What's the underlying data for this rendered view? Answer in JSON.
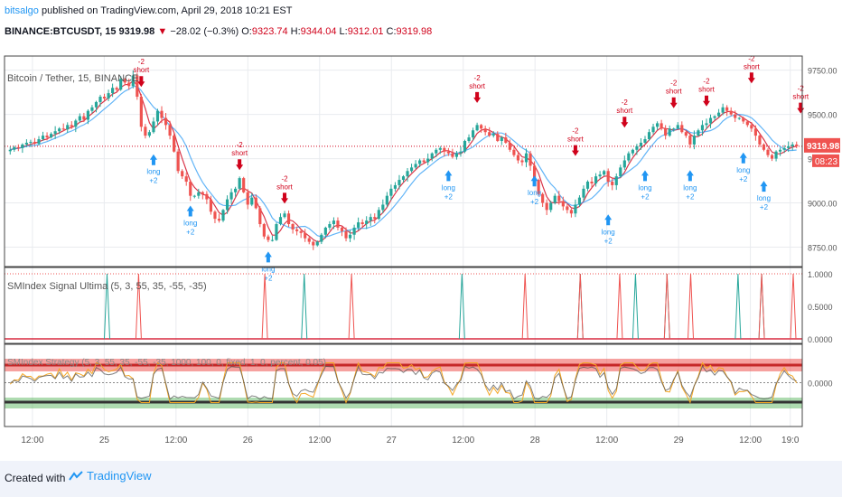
{
  "header": {
    "author": "bitsalgo",
    "published_text": "published on TradingView.com, April 29, 2018 10:21 EST",
    "symbol": "BINANCE:BTCUSDT, 15",
    "last": "9319.98",
    "change": "−28.02 (−0.3%)",
    "o_label": "O:",
    "o": "9323.74",
    "h_label": "H:",
    "h": "9344.04",
    "l_label": "L:",
    "l": "9312.01",
    "c_label": "C:",
    "c": "9319.98"
  },
  "colors": {
    "up": "#26a69a",
    "down": "#ef5350",
    "buy": "#2196f3",
    "sell": "#d0021b",
    "grid": "#e9ebef",
    "axis": "#555555"
  },
  "chart_data": [
    {
      "type": "candlestick",
      "title": "Bitcoin / Tether, 15, BINANCE",
      "price_axis_ticks": [
        "9750.00",
        "9500.00",
        "9250.00",
        "9000.00",
        "8750.00"
      ],
      "ylim": [
        8640,
        9830
      ],
      "x_axis_ticks": [
        "12:00",
        "25",
        "12:00",
        "26",
        "12:00",
        "27",
        "12:00",
        "28",
        "12:00",
        "29",
        "12:00",
        "19:0"
      ],
      "last_price_label": "9319.98",
      "countdown_label": "08:23",
      "close_path": [
        9300,
        9315,
        9310,
        9330,
        9340,
        9345,
        9335,
        9360,
        9380,
        9370,
        9390,
        9405,
        9420,
        9415,
        9440,
        9430,
        9465,
        9490,
        9470,
        9520,
        9540,
        9570,
        9600,
        9590,
        9620,
        9650,
        9640,
        9700,
        9680,
        9660,
        9720,
        9600,
        9430,
        9380,
        9400,
        9460,
        9520,
        9480,
        9440,
        9380,
        9290,
        9180,
        9150,
        9120,
        9040,
        9040,
        9060,
        9050,
        9020,
        8950,
        8910,
        8900,
        8960,
        9020,
        9060,
        9080,
        9140,
        9060,
        8990,
        9030,
        8970,
        8880,
        8810,
        8790,
        8790,
        8880,
        8920,
        8940,
        8880,
        8850,
        8840,
        8830,
        8800,
        8780,
        8760,
        8780,
        8820,
        8860,
        8880,
        8900,
        8860,
        8840,
        8800,
        8820,
        8860,
        8890,
        8880,
        8900,
        8920,
        8910,
        8960,
        8990,
        9040,
        9080,
        9100,
        9130,
        9150,
        9180,
        9200,
        9220,
        9240,
        9230,
        9250,
        9280,
        9300,
        9310,
        9290,
        9280,
        9260,
        9280,
        9290,
        9350,
        9370,
        9410,
        9440,
        9420,
        9400,
        9380,
        9390,
        9350,
        9370,
        9340,
        9300,
        9270,
        9240,
        9230,
        9280,
        9210,
        9130,
        9050,
        9000,
        8960,
        9000,
        9040,
        9010,
        8980,
        8960,
        8940,
        8990,
        9030,
        9080,
        9120,
        9110,
        9150,
        9160,
        9180,
        9120,
        9100,
        9150,
        9200,
        9240,
        9280,
        9300,
        9320,
        9340,
        9360,
        9400,
        9430,
        9450,
        9420,
        9380,
        9420,
        9420,
        9440,
        9400,
        9380,
        9330,
        9380,
        9410,
        9440,
        9450,
        9480,
        9490,
        9510,
        9540,
        9520,
        9500,
        9480,
        9480,
        9460,
        9440,
        9420,
        9380,
        9330,
        9300,
        9270,
        9250,
        9290,
        9300,
        9310,
        9320,
        9330,
        9320
      ]
    },
    {
      "type": "bar",
      "title": "SMIndex Signal Ultima (5, 3, 55, 35, -55, -35)",
      "price_axis_ticks": [
        "1.0000",
        "0.5000",
        "0.0000"
      ],
      "ylim": [
        0,
        1
      ],
      "buy_spike_positions": [
        0.13,
        0.38,
        0.58,
        0.73,
        0.8,
        0.84,
        0.93,
        0.96
      ],
      "sell_spike_positions": [
        0.17,
        0.33,
        0.44,
        0.66,
        0.73,
        0.78,
        0.84,
        0.87,
        0.96,
        1.0
      ]
    },
    {
      "type": "line",
      "title": "SMIndex Strategy (5, 3, 55, 35, -55, -35, 1000, 100, 0, fixed, 1, 0, percent, 0.05)",
      "price_axis_ticks": [
        "0.0000"
      ]
    }
  ],
  "signals": [
    {
      "kind": "short",
      "text": [
        "-2",
        "short"
      ],
      "i": 32,
      "price": 9640
    },
    {
      "kind": "long",
      "text": [
        "long",
        "+2"
      ],
      "i": 35,
      "price": 9290
    },
    {
      "kind": "long",
      "text": [
        "long",
        "+2"
      ],
      "i": 44,
      "price": 9000
    },
    {
      "kind": "short",
      "text": [
        "-2",
        "short"
      ],
      "i": 56,
      "price": 9170
    },
    {
      "kind": "long",
      "text": [
        "long",
        "+2"
      ],
      "i": 63,
      "price": 8740
    },
    {
      "kind": "short",
      "text": [
        "-2",
        "short"
      ],
      "i": 67,
      "price": 8980
    },
    {
      "kind": "short",
      "text": [
        "-2",
        "short"
      ],
      "i": 114,
      "price": 9550
    },
    {
      "kind": "long",
      "text": [
        "long",
        "+2"
      ],
      "i": 107,
      "price": 9200
    },
    {
      "kind": "long",
      "text": [
        "long",
        "+2"
      ],
      "i": 128,
      "price": 9170
    },
    {
      "kind": "short",
      "text": [
        "-2",
        "short"
      ],
      "i": 138,
      "price": 9250
    },
    {
      "kind": "long",
      "text": [
        "long",
        "+2"
      ],
      "i": 146,
      "price": 8950
    },
    {
      "kind": "short",
      "text": [
        "-2",
        "short"
      ],
      "i": 150,
      "price": 9410
    },
    {
      "kind": "long",
      "text": [
        "long",
        "+2"
      ],
      "i": 155,
      "price": 9200
    },
    {
      "kind": "short",
      "text": [
        "-2",
        "short"
      ],
      "i": 162,
      "price": 9520
    },
    {
      "kind": "long",
      "text": [
        "long",
        "+2"
      ],
      "i": 166,
      "price": 9200
    },
    {
      "kind": "short",
      "text": [
        "-2",
        "short"
      ],
      "i": 170,
      "price": 9530
    },
    {
      "kind": "long",
      "text": [
        "long",
        "+2"
      ],
      "i": 179,
      "price": 9300
    },
    {
      "kind": "short",
      "text": [
        "-2",
        "short"
      ],
      "i": 181,
      "price": 9660
    },
    {
      "kind": "long",
      "text": [
        "long",
        "+2"
      ],
      "i": 184,
      "price": 9140
    },
    {
      "kind": "short",
      "text": [
        "-2",
        "short"
      ],
      "i": 193,
      "price": 9490
    }
  ],
  "footer": {
    "created_with": "Created with",
    "brand": "TradingView"
  }
}
